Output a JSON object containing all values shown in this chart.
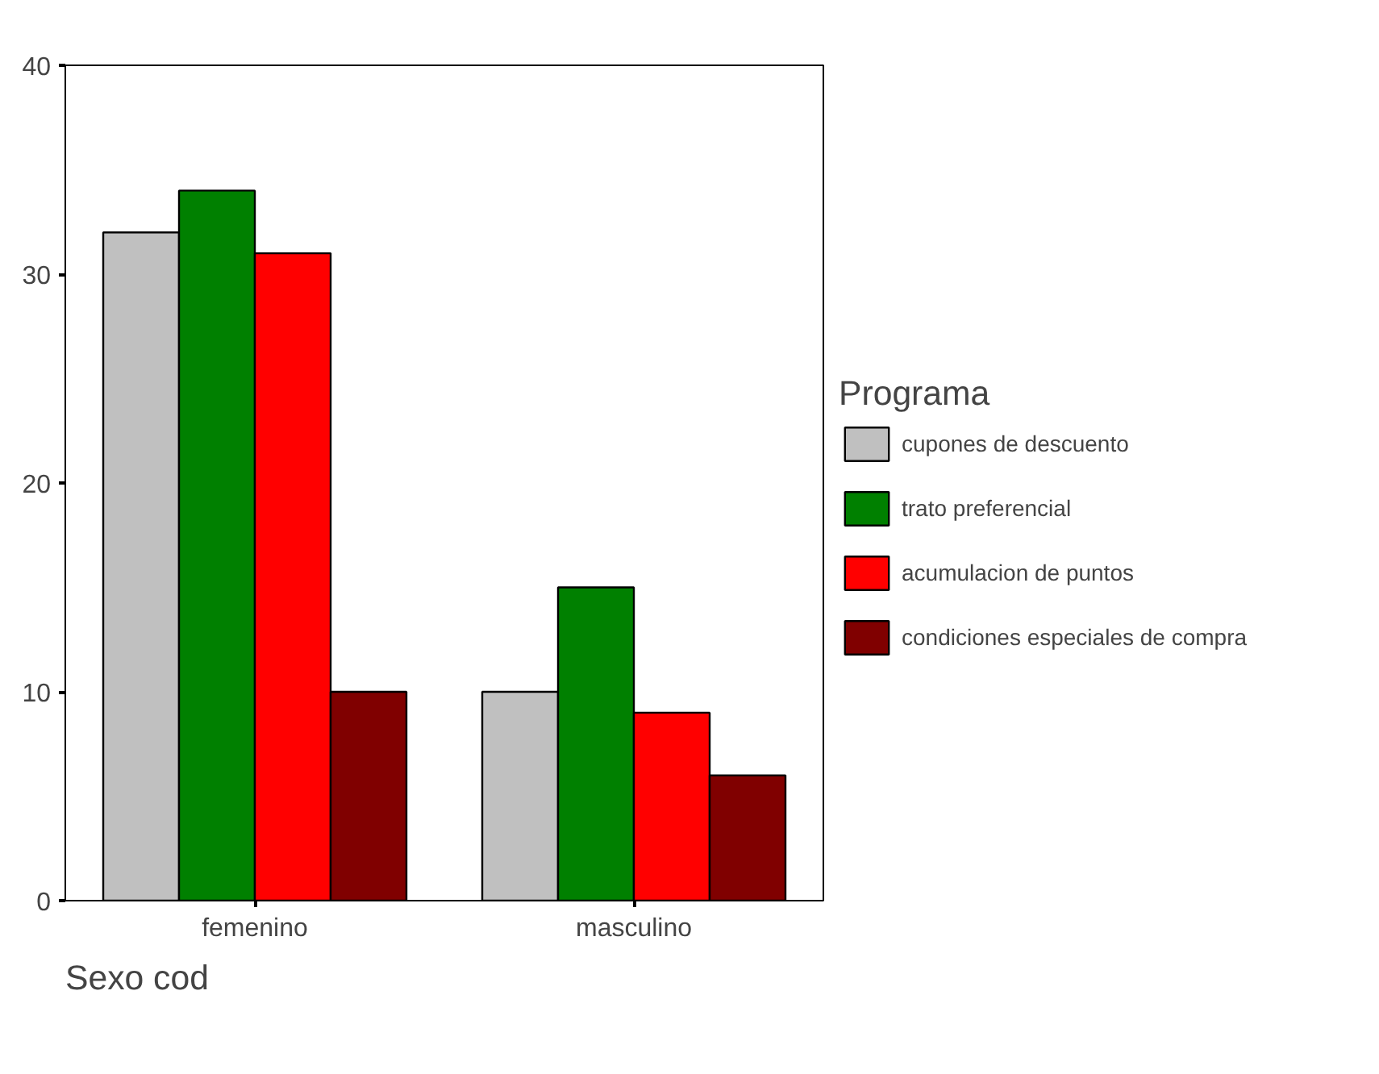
{
  "chart_data": {
    "type": "bar",
    "categories": [
      "femenino",
      "masculino"
    ],
    "xlabel": "Sexo cod",
    "legend_title": "Programa",
    "legend": "right",
    "grid": false,
    "ylim": [
      0,
      40
    ],
    "yticks": [
      0,
      10,
      20,
      30,
      40
    ],
    "series": [
      {
        "name": "cupones de descuento",
        "color": "#c0c0c0",
        "values": [
          32,
          10
        ]
      },
      {
        "name": "trato preferencial",
        "color": "#008000",
        "values": [
          34,
          15
        ]
      },
      {
        "name": "acumulacion de puntos",
        "color": "#ff0000",
        "values": [
          31,
          9
        ]
      },
      {
        "name": "condiciones especiales de compra",
        "color": "#800000",
        "values": [
          10,
          6
        ]
      }
    ]
  }
}
